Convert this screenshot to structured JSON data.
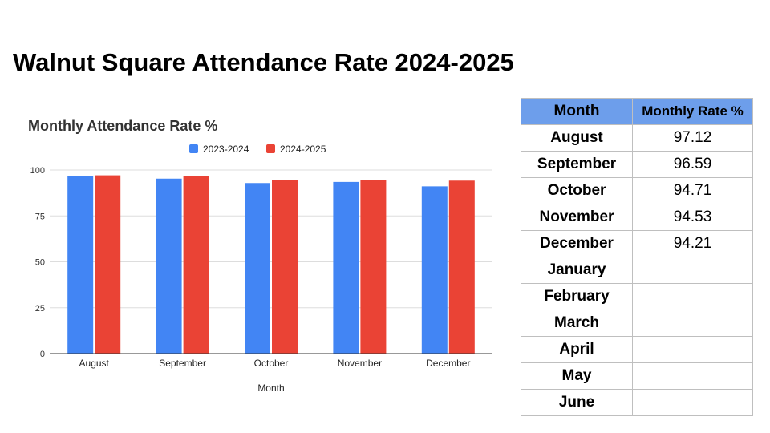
{
  "slide": {
    "title": "Walnut Square Attendance Rate 2024-2025"
  },
  "chart_data": {
    "type": "bar",
    "title": "Monthly Attendance Rate %",
    "xlabel": "Month",
    "ylabel": "",
    "categories": [
      "August",
      "September",
      "October",
      "November",
      "December"
    ],
    "series": [
      {
        "name": "2023-2024",
        "color": "#4285f4",
        "values": [
          96.9,
          95.3,
          92.9,
          93.5,
          91.1
        ]
      },
      {
        "name": "2024-2025",
        "color": "#ea4335",
        "values": [
          97.12,
          96.59,
          94.71,
          94.53,
          94.21
        ]
      }
    ],
    "ylim": [
      0,
      100
    ],
    "yticks": [
      0,
      25,
      50,
      75,
      100
    ],
    "grid": true,
    "legend": "top-center"
  },
  "table": {
    "headers": [
      "Month",
      "Monthly Rate %"
    ],
    "header_color": "#6d9eeb",
    "rows": [
      {
        "month": "August",
        "rate": "97.12"
      },
      {
        "month": "September",
        "rate": "96.59"
      },
      {
        "month": "October",
        "rate": "94.71"
      },
      {
        "month": "November",
        "rate": "94.53"
      },
      {
        "month": "December",
        "rate": "94.21"
      },
      {
        "month": "January",
        "rate": ""
      },
      {
        "month": "February",
        "rate": ""
      },
      {
        "month": "March",
        "rate": ""
      },
      {
        "month": "April",
        "rate": ""
      },
      {
        "month": "May",
        "rate": ""
      },
      {
        "month": "June",
        "rate": ""
      }
    ]
  }
}
